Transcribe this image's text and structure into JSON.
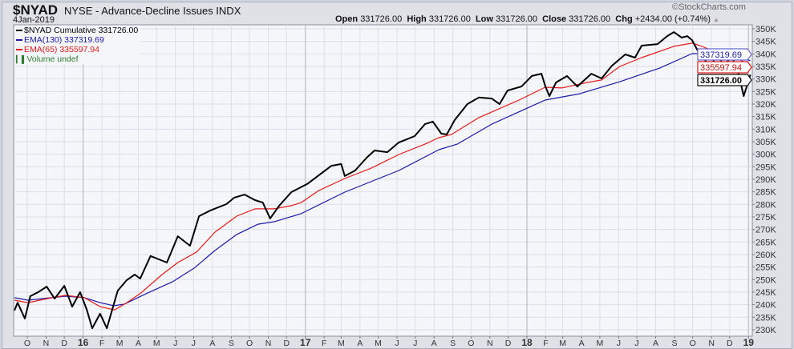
{
  "header": {
    "symbol": "$NYAD",
    "description": "NYSE - Advance-Decline Issues INDX",
    "date": "4Jan-2019",
    "brand": "©StockCharts.com",
    "open_label": "Open",
    "open": "331726.00",
    "high_label": "High",
    "high": "331726.00",
    "low_label": "Low",
    "low": "331726.00",
    "close_label": "Close",
    "close": "331726.00",
    "chg_label": "Chg",
    "chg": "+2434.00 (+0.74%)",
    "chg_icon": "triangle-up-icon"
  },
  "legend": [
    {
      "text": "$NYAD Cumulative 331726.00",
      "color": "#000000"
    },
    {
      "text": "EMA(130) 337319.69",
      "color": "#1a1aa6"
    },
    {
      "text": "EMA(65) 335597.94",
      "color": "#e41a1a"
    },
    {
      "text": "Volume undef",
      "color": "#2e7d32"
    }
  ],
  "price_labels": [
    "337319.69",
    "335597.94",
    "331726.00"
  ],
  "chart_data": {
    "type": "line",
    "x_type": "date",
    "ylim": [
      228,
      352
    ],
    "y_unit": "K",
    "y_ticks": [
      "230K",
      "235K",
      "240K",
      "245K",
      "250K",
      "255K",
      "260K",
      "265K",
      "270K",
      "275K",
      "280K",
      "285K",
      "290K",
      "295K",
      "300K",
      "305K",
      "310K",
      "315K",
      "320K",
      "325K",
      "330K",
      "335K",
      "340K",
      "345K",
      "350K"
    ],
    "x_ticks": [
      "O",
      "N",
      "D",
      "16",
      "F",
      "M",
      "A",
      "M",
      "J",
      "J",
      "A",
      "S",
      "O",
      "N",
      "D",
      "17",
      "F",
      "M",
      "A",
      "M",
      "J",
      "J",
      "A",
      "S",
      "O",
      "N",
      "D",
      "18",
      "F",
      "M",
      "A",
      "M",
      "J",
      "J",
      "A",
      "S",
      "O",
      "N",
      "D",
      "19"
    ],
    "grid": true,
    "y_axis_position": "right",
    "series": [
      {
        "name": "$NYAD Cumulative",
        "color": "#000000",
        "points": [
          [
            "2015-09-10",
            237.7
          ],
          [
            "2015-09-15",
            240.8
          ],
          [
            "2015-09-27",
            234.5
          ],
          [
            "2015-10-06",
            243.4
          ],
          [
            "2015-10-19",
            245.0
          ],
          [
            "2015-11-02",
            247.2
          ],
          [
            "2015-11-15",
            242.4
          ],
          [
            "2015-12-01",
            247.5
          ],
          [
            "2015-12-14",
            239.2
          ],
          [
            "2015-12-27",
            245.0
          ],
          [
            "2016-01-07",
            238.0
          ],
          [
            "2016-01-16",
            230.6
          ],
          [
            "2016-01-29",
            236.4
          ],
          [
            "2016-02-09",
            230.6
          ],
          [
            "2016-02-27",
            245.6
          ],
          [
            "2016-03-13",
            249.8
          ],
          [
            "2016-03-26",
            252.0
          ],
          [
            "2016-04-04",
            250.4
          ],
          [
            "2016-04-21",
            259.4
          ],
          [
            "2016-05-18",
            256.8
          ],
          [
            "2016-06-05",
            267.3
          ],
          [
            "2016-06-25",
            263.5
          ],
          [
            "2016-07-10",
            275.3
          ],
          [
            "2016-07-28",
            277.5
          ],
          [
            "2016-08-24",
            280.1
          ],
          [
            "2016-09-06",
            282.7
          ],
          [
            "2016-09-23",
            283.9
          ],
          [
            "2016-10-10",
            281.7
          ],
          [
            "2016-10-23",
            280.7
          ],
          [
            "2016-11-04",
            274.4
          ],
          [
            "2016-11-19",
            279.5
          ],
          [
            "2016-12-09",
            284.9
          ],
          [
            "2017-01-04",
            288.1
          ],
          [
            "2017-02-13",
            295.4
          ],
          [
            "2017-03-01",
            296.1
          ],
          [
            "2017-03-07",
            291.3
          ],
          [
            "2017-03-24",
            293.5
          ],
          [
            "2017-04-12",
            298.6
          ],
          [
            "2017-04-25",
            301.5
          ],
          [
            "2017-05-16",
            300.8
          ],
          [
            "2017-06-04",
            304.7
          ],
          [
            "2017-06-30",
            307.2
          ],
          [
            "2017-07-17",
            312.0
          ],
          [
            "2017-07-30",
            313.0
          ],
          [
            "2017-08-13",
            308.2
          ],
          [
            "2017-08-22",
            307.9
          ],
          [
            "2017-09-04",
            313.6
          ],
          [
            "2017-09-25",
            320.0
          ],
          [
            "2017-10-14",
            322.6
          ],
          [
            "2017-11-04",
            322.2
          ],
          [
            "2017-11-17",
            320.0
          ],
          [
            "2017-11-30",
            325.4
          ],
          [
            "2017-12-23",
            327.0
          ],
          [
            "2018-01-09",
            331.2
          ],
          [
            "2018-01-25",
            332.1
          ],
          [
            "2018-01-31",
            327.3
          ],
          [
            "2018-02-07",
            323.2
          ],
          [
            "2018-02-18",
            328.6
          ],
          [
            "2018-03-08",
            331.2
          ],
          [
            "2018-03-25",
            327.0
          ],
          [
            "2018-04-17",
            332.1
          ],
          [
            "2018-05-04",
            330.2
          ],
          [
            "2018-05-21",
            335.3
          ],
          [
            "2018-06-12",
            339.8
          ],
          [
            "2018-06-28",
            338.5
          ],
          [
            "2018-07-09",
            343.3
          ],
          [
            "2018-08-04",
            343.9
          ],
          [
            "2018-08-20",
            347.1
          ],
          [
            "2018-08-31",
            348.7
          ],
          [
            "2018-09-13",
            346.5
          ],
          [
            "2018-09-22",
            347.1
          ],
          [
            "2018-09-30",
            345.5
          ],
          [
            "2018-10-09",
            341.4
          ],
          [
            "2018-10-23",
            336.9
          ],
          [
            "2018-11-01",
            335.0
          ],
          [
            "2018-11-09",
            340.1
          ],
          [
            "2018-11-22",
            335.3
          ],
          [
            "2018-12-04",
            339.1
          ],
          [
            "2018-12-14",
            333.7
          ],
          [
            "2018-12-24",
            323.2
          ],
          [
            "2019-01-04",
            331.726
          ]
        ]
      },
      {
        "name": "EMA(130)",
        "color": "#1a1aa6",
        "points": [
          [
            "2015-09-10",
            242.8
          ],
          [
            "2015-10-02",
            241.8
          ],
          [
            "2015-12-03",
            243.4
          ],
          [
            "2016-01-03",
            242.8
          ],
          [
            "2016-01-29",
            240.8
          ],
          [
            "2016-02-21",
            239.6
          ],
          [
            "2016-03-09",
            240.2
          ],
          [
            "2016-04-14",
            244.4
          ],
          [
            "2016-05-27",
            249.1
          ],
          [
            "2016-07-02",
            254.6
          ],
          [
            "2016-08-05",
            261.6
          ],
          [
            "2016-09-10",
            268.0
          ],
          [
            "2016-10-15",
            272.1
          ],
          [
            "2016-11-11",
            273.1
          ],
          [
            "2016-12-25",
            276.3
          ],
          [
            "2017-03-07",
            284.9
          ],
          [
            "2017-06-04",
            293.5
          ],
          [
            "2017-08-09",
            301.8
          ],
          [
            "2017-09-08",
            304.0
          ],
          [
            "2017-11-04",
            312.0
          ],
          [
            "2018-01-31",
            321.6
          ],
          [
            "2018-03-29",
            324.1
          ],
          [
            "2018-06-03",
            328.9
          ],
          [
            "2018-08-08",
            334.4
          ],
          [
            "2018-09-30",
            340.1
          ],
          [
            "2018-10-23",
            340.1
          ],
          [
            "2018-12-05",
            339.1
          ],
          [
            "2019-01-04",
            337.32
          ]
        ]
      },
      {
        "name": "EMA(65)",
        "color": "#e41a1a",
        "points": [
          [
            "2015-09-10",
            241.8
          ],
          [
            "2015-10-02",
            240.8
          ],
          [
            "2015-11-11",
            242.8
          ],
          [
            "2015-12-03",
            243.7
          ],
          [
            "2016-01-03",
            242.8
          ],
          [
            "2016-01-29",
            239.2
          ],
          [
            "2016-02-22",
            237.9
          ],
          [
            "2016-03-13",
            240.8
          ],
          [
            "2016-04-04",
            244.4
          ],
          [
            "2016-05-10",
            252.0
          ],
          [
            "2016-06-05",
            256.8
          ],
          [
            "2016-07-06",
            261.0
          ],
          [
            "2016-08-05",
            268.9
          ],
          [
            "2016-09-10",
            275.3
          ],
          [
            "2016-10-10",
            278.2
          ],
          [
            "2016-11-11",
            278.2
          ],
          [
            "2016-12-09",
            279.5
          ],
          [
            "2016-12-25",
            280.7
          ],
          [
            "2017-01-23",
            285.5
          ],
          [
            "2017-03-07",
            290.3
          ],
          [
            "2017-04-20",
            294.5
          ],
          [
            "2017-06-04",
            299.9
          ],
          [
            "2017-07-17",
            304.0
          ],
          [
            "2017-08-09",
            306.6
          ],
          [
            "2017-08-30",
            307.9
          ],
          [
            "2017-10-14",
            314.6
          ],
          [
            "2017-11-13",
            317.8
          ],
          [
            "2017-12-19",
            321.6
          ],
          [
            "2018-01-31",
            326.7
          ],
          [
            "2018-02-27",
            326.4
          ],
          [
            "2018-04-11",
            328.6
          ],
          [
            "2018-05-04",
            329.6
          ],
          [
            "2018-06-03",
            335.0
          ],
          [
            "2018-07-09",
            338.5
          ],
          [
            "2018-08-31",
            343.0
          ],
          [
            "2018-09-30",
            344.3
          ],
          [
            "2018-10-13",
            343.3
          ],
          [
            "2018-11-09",
            340.7
          ],
          [
            "2018-12-05",
            339.1
          ],
          [
            "2018-12-24",
            336.9
          ],
          [
            "2019-01-04",
            335.6
          ]
        ]
      }
    ]
  }
}
